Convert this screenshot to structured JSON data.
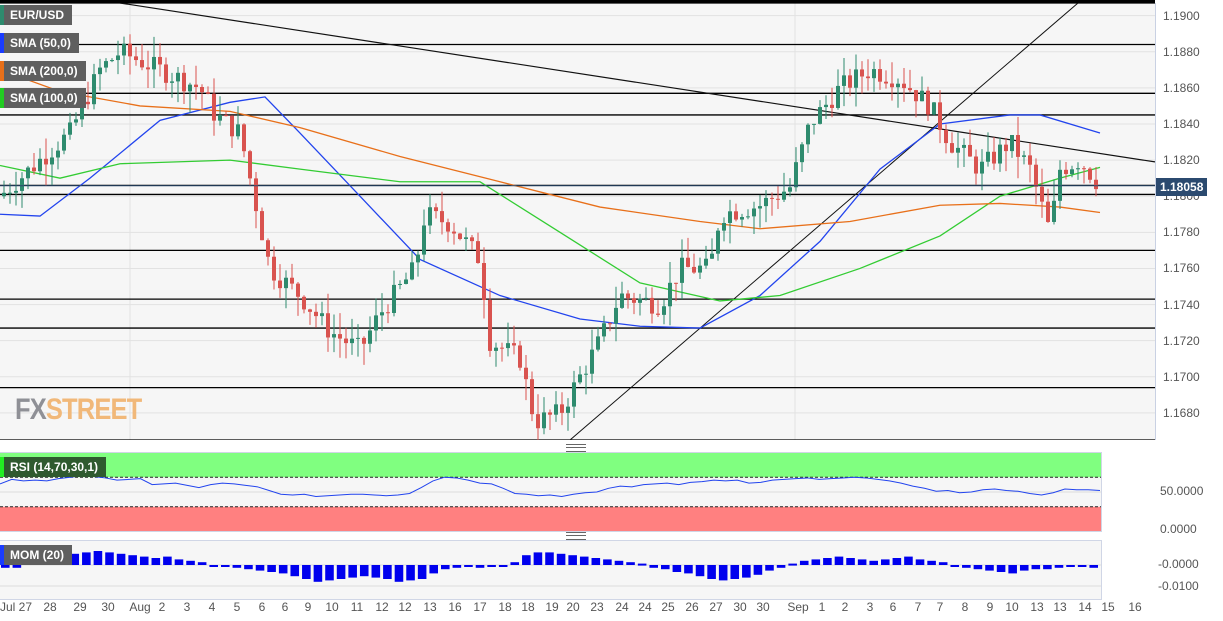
{
  "header": {
    "symbol": "EUR/USD",
    "current_price": "1.18058",
    "brand": {
      "fx": "FX",
      "street": "STREET"
    }
  },
  "legend": [
    {
      "label": "EUR/USD",
      "color": "#2e8b6e"
    },
    {
      "label": "SMA (50,0)",
      "color": "#1a3cff"
    },
    {
      "label": "SMA (200,0)",
      "color": "#e8701a"
    },
    {
      "label": "SMA (100,0)",
      "color": "#22cc22"
    }
  ],
  "indicators": {
    "rsi": {
      "label": "RSI (14,70,30,1)",
      "ticks": [
        "50.0000",
        "0.0000"
      ],
      "overbought_color": "#80ff80",
      "oversold_color": "#ff8080"
    },
    "mom": {
      "label": "MOM (20)",
      "ticks": [
        "-0.0000",
        "-0.0100"
      ]
    }
  },
  "colors": {
    "up": "#2e8b6e",
    "down": "#d9534f",
    "sma50": "#2244ee",
    "sma100": "#33cc33",
    "sma200": "#e8701a",
    "background": "#f6f6f6"
  },
  "chart_data": {
    "type": "candlestick",
    "title": "EUR/USD",
    "ylim": [
      1.1665,
      1.1907
    ],
    "y_ticks": [
      "1.1900",
      "1.1880",
      "1.1860",
      "1.1840",
      "1.1820",
      "1.1800",
      "1.1780",
      "1.1760",
      "1.1740",
      "1.1720",
      "1.1700",
      "1.1680"
    ],
    "x_ticks": [
      "Jul 27",
      "28",
      "29",
      "30",
      "Aug",
      "2",
      "3",
      "4",
      "5",
      "6",
      "6",
      "9",
      "10",
      "11",
      "12",
      "12",
      "13",
      "16",
      "17",
      "18",
      "18",
      "19",
      "20",
      "23",
      "24",
      "24",
      "25",
      "26",
      "27",
      "30",
      "30",
      "Sep",
      "1",
      "2",
      "3",
      "6",
      "7",
      "7",
      "8",
      "9",
      "10",
      "13",
      "13",
      "14",
      "15",
      "16"
    ],
    "horizontal_levels": [
      1.1907,
      1.1884,
      1.1857,
      1.1845,
      1.1806,
      1.1801,
      1.177,
      1.1743,
      1.1727,
      1.1694,
      1.1665
    ],
    "trendlines": [
      {
        "from": [
          "Jul 30",
          1.1907
        ],
        "to": [
          "Sep 15",
          1.1819
        ],
        "desc": "descending resistance"
      },
      {
        "from": [
          "Aug 20",
          1.1665
        ],
        "to": [
          "Sep 14",
          1.1907
        ],
        "desc": "ascending support"
      }
    ],
    "last_price": 1.18058,
    "series": [
      {
        "name": "SMA (50,0)",
        "points": [
          [
            0,
            1.179
          ],
          [
            40,
            1.1789
          ],
          [
            90,
            1.181
          ],
          [
            160,
            1.1842
          ],
          [
            230,
            1.1852
          ],
          [
            265,
            1.1855
          ],
          [
            300,
            1.1835
          ],
          [
            360,
            1.18
          ],
          [
            420,
            1.1765
          ],
          [
            500,
            1.1745
          ],
          [
            580,
            1.1732
          ],
          [
            640,
            1.1728
          ],
          [
            700,
            1.1727
          ],
          [
            760,
            1.1745
          ],
          [
            820,
            1.1775
          ],
          [
            880,
            1.1815
          ],
          [
            940,
            1.184
          ],
          [
            1010,
            1.1845
          ],
          [
            1040,
            1.1845
          ],
          [
            1100,
            1.1835
          ]
        ]
      },
      {
        "name": "SMA (100,0)",
        "points": [
          [
            0,
            1.1817
          ],
          [
            60,
            1.181
          ],
          [
            120,
            1.1818
          ],
          [
            230,
            1.182
          ],
          [
            300,
            1.1815
          ],
          [
            400,
            1.1808
          ],
          [
            480,
            1.1808
          ],
          [
            560,
            1.178
          ],
          [
            640,
            1.1752
          ],
          [
            720,
            1.1742
          ],
          [
            780,
            1.1745
          ],
          [
            860,
            1.176
          ],
          [
            940,
            1.1778
          ],
          [
            1000,
            1.18
          ],
          [
            1060,
            1.181
          ],
          [
            1100,
            1.1816
          ]
        ]
      },
      {
        "name": "SMA (200,0)",
        "points": [
          [
            0,
            1.187
          ],
          [
            60,
            1.1858
          ],
          [
            140,
            1.185
          ],
          [
            230,
            1.1847
          ],
          [
            300,
            1.1838
          ],
          [
            400,
            1.1822
          ],
          [
            500,
            1.1808
          ],
          [
            600,
            1.1794
          ],
          [
            700,
            1.1786
          ],
          [
            760,
            1.1782
          ],
          [
            850,
            1.1786
          ],
          [
            940,
            1.1795
          ],
          [
            1000,
            1.1796
          ],
          [
            1060,
            1.1794
          ],
          [
            1100,
            1.1791
          ]
        ]
      }
    ],
    "rsi_values": [
      61,
      67,
      65,
      66,
      65,
      68,
      70,
      72,
      71,
      69,
      66,
      67,
      68,
      60,
      61,
      62,
      59,
      56,
      60,
      62,
      61,
      59,
      57,
      52,
      47,
      46,
      47,
      44,
      45,
      46,
      47,
      47,
      46,
      45,
      46,
      48,
      56,
      65,
      70,
      69,
      66,
      62,
      61,
      55,
      48,
      47,
      45,
      46,
      44,
      47,
      49,
      50,
      55,
      58,
      57,
      60,
      61,
      62,
      60,
      63,
      64,
      66,
      65,
      66,
      62,
      63,
      66,
      67,
      68,
      69,
      67,
      68,
      69,
      70,
      69,
      67,
      65,
      62,
      58,
      55,
      51,
      52,
      49,
      50,
      53,
      54,
      52,
      51,
      48,
      46,
      49,
      54,
      53,
      53,
      52
    ],
    "mom_values": [
      -2,
      -2,
      3,
      4,
      5,
      6,
      8,
      9,
      10,
      9,
      8,
      7,
      6,
      5,
      6,
      4,
      3,
      2,
      0,
      -1,
      -2,
      -3,
      -4,
      -5,
      -6,
      -8,
      -10,
      -12,
      -11,
      -10,
      -9,
      -8,
      -9,
      -10,
      -12,
      -11,
      -10,
      -6,
      -3,
      -2,
      -1,
      -2,
      -1,
      0,
      2,
      7,
      9,
      9,
      8,
      7,
      6,
      5,
      4,
      3,
      2,
      1,
      -2,
      -3,
      -5,
      -6,
      -8,
      -10,
      -11,
      -10,
      -9,
      -7,
      -4,
      -2,
      1,
      3,
      4,
      5,
      6,
      5,
      4,
      3,
      4,
      5,
      6,
      4,
      3,
      2,
      -1,
      -2,
      -3,
      -4,
      -5,
      -6,
      -4,
      -3,
      -3,
      -2,
      -1,
      -1,
      -2
    ]
  }
}
